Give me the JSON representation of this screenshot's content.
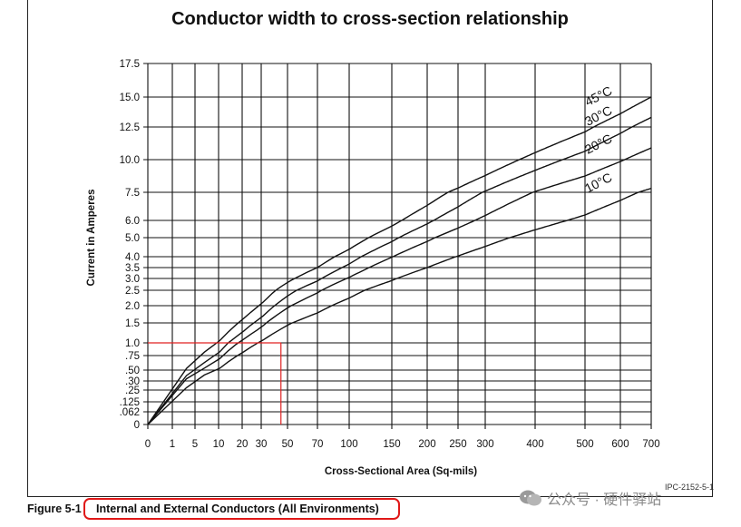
{
  "chart_data": {
    "type": "line",
    "title": "Conductor width to cross-section relationship",
    "xlabel": "Cross-Sectional Area (Sq-mils)",
    "ylabel": "Current in Amperes",
    "x_ticks": [
      "0",
      "1",
      "5",
      "10",
      "20",
      "30",
      "50",
      "70",
      "100",
      "150",
      "200",
      "250",
      "300",
      "400",
      "500",
      "600",
      "700"
    ],
    "y_ticks": [
      "0",
      ".062",
      ".125",
      ".25",
      ".30",
      ".50",
      ".75",
      "1.0",
      "1.5",
      "2.0",
      "2.5",
      "3.0",
      "3.5",
      "4.0",
      "5.0",
      "6.0",
      "7.5",
      "10.0",
      "12.5",
      "15.0",
      "17.5"
    ],
    "xlim": [
      0,
      700
    ],
    "ylim": [
      0,
      17.5
    ],
    "grid": true,
    "series": [
      {
        "name": "45°C",
        "x": [
          0,
          20,
          50,
          100,
          200,
          300,
          400,
          500,
          600,
          700
        ],
        "y": [
          0,
          1.5,
          2.8,
          4.3,
          6.8,
          8.9,
          10.7,
          12.4,
          13.9,
          15.0
        ]
      },
      {
        "name": "30°C",
        "x": [
          0,
          20,
          50,
          100,
          200,
          300,
          400,
          500,
          600,
          700
        ],
        "y": [
          0,
          1.35,
          2.45,
          3.7,
          5.8,
          7.6,
          9.3,
          10.8,
          12.2,
          13.3
        ]
      },
      {
        "name": "20°C",
        "x": [
          0,
          20,
          50,
          100,
          200,
          300,
          400,
          500,
          600,
          700
        ],
        "y": [
          0,
          1.15,
          2.1,
          3.1,
          4.8,
          6.3,
          7.6,
          8.8,
          9.9,
          10.9
        ]
      },
      {
        "name": "10°C",
        "x": [
          0,
          20,
          50,
          100,
          200,
          300,
          400,
          500,
          600,
          700
        ],
        "y": [
          0,
          0.85,
          1.5,
          2.2,
          3.5,
          4.5,
          5.5,
          6.3,
          7.1,
          7.8
        ]
      }
    ],
    "highlight": {
      "x": 45,
      "y": 1.0,
      "color": "#e02020"
    }
  },
  "figure_label": "Figure 5-1",
  "caption": "Internal and External Conductors (All Environments)",
  "ref_code": "IPC-2152-5-1",
  "watermark": "公众号 · 硬件驿站",
  "colors": {
    "grid": "#111111",
    "curves": "#111111",
    "highlight": "#e02020",
    "caption_box": "#e01818"
  }
}
